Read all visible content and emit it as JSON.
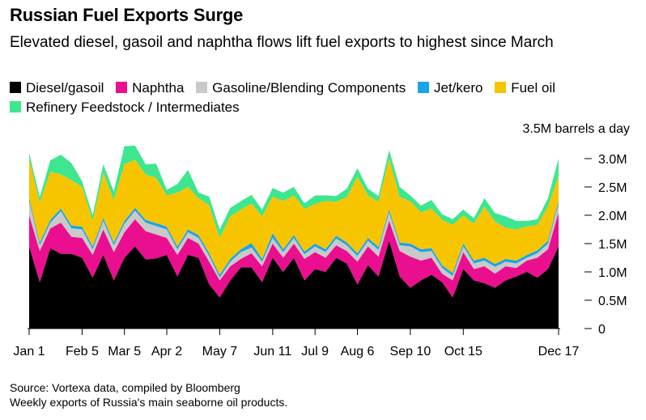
{
  "title": "Russian Fuel Exports Surge",
  "subtitle": "Elevated diesel, gasoil and naphtha flows lift fuel exports to highest since March",
  "unit_label": "3.5M barrels a day",
  "source": "Source: Vortexa data, compiled by Bloomberg",
  "note": "Weekly exports of Russia's main seaborne oil products.",
  "colors": {
    "diesel": "#000000",
    "naphtha": "#ea0f8e",
    "gasoline": "#c9c9c9",
    "jet": "#1aa5e6",
    "fuel_oil": "#f7c500",
    "feedstock": "#3ee68f"
  },
  "chart_data": {
    "type": "area",
    "stacked": true,
    "title": "Russian Fuel Exports Surge",
    "ylabel": "3.5M barrels a day",
    "ylim": [
      0,
      3.5
    ],
    "y_ticks": [
      {
        "value": 0,
        "label": "0"
      },
      {
        "value": 0.5,
        "label": "0.5M"
      },
      {
        "value": 1.0,
        "label": "1.0M"
      },
      {
        "value": 1.5,
        "label": "1.5M"
      },
      {
        "value": 2.0,
        "label": "2.0M"
      },
      {
        "value": 2.5,
        "label": "2.5M"
      },
      {
        "value": 3.0,
        "label": "3.0M"
      }
    ],
    "x_ticks": [
      {
        "week": 0,
        "label": "Jan 1"
      },
      {
        "week": 5,
        "label": "Feb 5"
      },
      {
        "week": 9,
        "label": "Mar 5"
      },
      {
        "week": 13,
        "label": "Apr 2"
      },
      {
        "week": 18,
        "label": "May 7"
      },
      {
        "week": 23,
        "label": "Jun 11"
      },
      {
        "week": 27,
        "label": "Jul 9"
      },
      {
        "week": 31,
        "label": "Aug 6"
      },
      {
        "week": 36,
        "label": "Sep 10"
      },
      {
        "week": 41,
        "label": "Oct 15"
      },
      {
        "week": 50,
        "label": "Dec 17"
      }
    ],
    "weeks": [
      0,
      1,
      2,
      3,
      4,
      5,
      6,
      7,
      8,
      9,
      10,
      11,
      12,
      13,
      14,
      15,
      16,
      17,
      18,
      19,
      20,
      21,
      22,
      23,
      24,
      25,
      26,
      27,
      28,
      29,
      30,
      31,
      32,
      33,
      34,
      35,
      36,
      37,
      38,
      39,
      40,
      41,
      42,
      43,
      44,
      45,
      46,
      47,
      48,
      49,
      50
    ],
    "series": [
      {
        "name": "Diesel/gasoil",
        "key": "diesel",
        "values": [
          1.45,
          0.82,
          1.42,
          1.32,
          1.32,
          1.25,
          0.9,
          1.3,
          0.85,
          1.25,
          1.45,
          1.22,
          1.24,
          1.3,
          0.92,
          1.3,
          1.25,
          0.78,
          0.55,
          0.85,
          1.08,
          1.08,
          0.82,
          1.25,
          1.0,
          1.25,
          0.85,
          1.05,
          1.0,
          1.25,
          1.15,
          0.78,
          1.12,
          0.92,
          1.55,
          0.92,
          0.72,
          0.85,
          0.95,
          0.82,
          0.55,
          1.05,
          0.85,
          0.8,
          0.72,
          0.85,
          0.92,
          1.0,
          0.9,
          1.05,
          1.45
        ]
      },
      {
        "name": "Naphtha",
        "key": "naphtha",
        "values": [
          0.55,
          0.55,
          0.35,
          0.55,
          0.3,
          0.35,
          0.4,
          0.45,
          0.5,
          0.45,
          0.48,
          0.5,
          0.42,
          0.3,
          0.38,
          0.3,
          0.25,
          0.4,
          0.3,
          0.25,
          0.15,
          0.25,
          0.28,
          0.25,
          0.25,
          0.25,
          0.38,
          0.3,
          0.25,
          0.22,
          0.22,
          0.4,
          0.33,
          0.35,
          0.35,
          0.45,
          0.55,
          0.35,
          0.3,
          0.15,
          0.3,
          0.3,
          0.2,
          0.3,
          0.25,
          0.25,
          0.15,
          0.2,
          0.35,
          0.35,
          0.6
        ]
      },
      {
        "name": "Gasoline/Blending Components",
        "key": "gasoline",
        "values": [
          0.25,
          0.1,
          0.1,
          0.2,
          0.15,
          0.15,
          0.1,
          0.15,
          0.12,
          0.15,
          0.15,
          0.15,
          0.15,
          0.15,
          0.1,
          0.1,
          0.1,
          0.1,
          0.05,
          0.08,
          0.12,
          0.1,
          0.08,
          0.1,
          0.1,
          0.1,
          0.08,
          0.1,
          0.1,
          0.12,
          0.1,
          0.1,
          0.1,
          0.12,
          0.15,
          0.1,
          0.18,
          0.15,
          0.12,
          0.1,
          0.08,
          0.1,
          0.1,
          0.1,
          0.12,
          0.08,
          0.08,
          0.05,
          0.08,
          0.1,
          0.15
        ]
      },
      {
        "name": "Jet/kero",
        "key": "jet",
        "values": [
          0.05,
          0.05,
          0.05,
          0.05,
          0.05,
          0.05,
          0.05,
          0.05,
          0.05,
          0.05,
          0.05,
          0.05,
          0.05,
          0.05,
          0.05,
          0.05,
          0.05,
          0.05,
          0.05,
          0.05,
          0.05,
          0.08,
          0.05,
          0.08,
          0.05,
          0.05,
          0.05,
          0.05,
          0.05,
          0.05,
          0.05,
          0.05,
          0.05,
          0.05,
          0.05,
          0.05,
          0.05,
          0.05,
          0.05,
          0.05,
          0.05,
          0.05,
          0.05,
          0.05,
          0.05,
          0.05,
          0.05,
          0.05,
          0.05,
          0.05,
          0.05
        ]
      },
      {
        "name": "Fuel oil",
        "key": "fuel_oil",
        "values": [
          0.7,
          0.7,
          0.85,
          0.6,
          0.8,
          0.7,
          0.45,
          0.8,
          0.75,
          1.0,
          0.85,
          0.8,
          0.8,
          0.55,
          0.95,
          0.75,
          0.65,
          0.85,
          0.65,
          0.75,
          0.7,
          0.7,
          0.75,
          0.65,
          0.85,
          0.7,
          0.75,
          0.7,
          0.85,
          0.6,
          0.8,
          1.35,
          0.75,
          0.8,
          0.9,
          0.8,
          0.75,
          0.65,
          0.7,
          0.8,
          0.85,
          0.5,
          0.65,
          0.9,
          0.75,
          0.55,
          0.55,
          0.5,
          0.45,
          0.6,
          0.45
        ]
      },
      {
        "name": "Refinery Feedstock / Intermediates",
        "key": "feedstock",
        "values": [
          0.1,
          0.1,
          0.2,
          0.35,
          0.3,
          0.1,
          0.1,
          0.15,
          0.15,
          0.32,
          0.25,
          0.18,
          0.25,
          0.1,
          0.15,
          0.3,
          0.1,
          0.15,
          0.15,
          0.15,
          0.15,
          0.15,
          0.12,
          0.15,
          0.15,
          0.15,
          0.1,
          0.15,
          0.1,
          0.1,
          0.15,
          0.15,
          0.12,
          0.1,
          0.15,
          0.18,
          0.1,
          0.12,
          0.15,
          0.1,
          0.1,
          0.1,
          0.1,
          0.15,
          0.15,
          0.2,
          0.15,
          0.1,
          0.1,
          0.15,
          0.3
        ]
      }
    ]
  }
}
